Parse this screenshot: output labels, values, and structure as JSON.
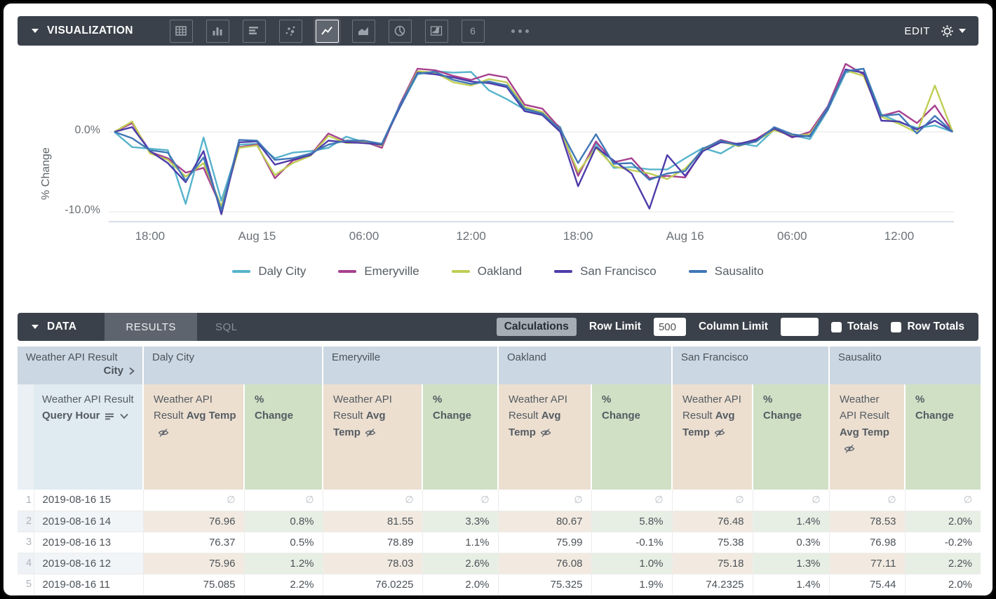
{
  "viz_toolbar": {
    "title": "VISUALIZATION",
    "edit_label": "EDIT",
    "icons": [
      {
        "name": "table-icon",
        "selected": false
      },
      {
        "name": "column-chart-icon",
        "selected": false
      },
      {
        "name": "bar-chart-icon",
        "selected": false
      },
      {
        "name": "scatter-plot-icon",
        "selected": false
      },
      {
        "name": "line-chart-icon",
        "selected": true
      },
      {
        "name": "area-chart-icon",
        "selected": false
      },
      {
        "name": "pie-chart-icon",
        "selected": false
      },
      {
        "name": "map-icon",
        "selected": false
      },
      {
        "name": "single-value-icon",
        "selected": false
      }
    ],
    "single_value_glyph": "6"
  },
  "chart_data": {
    "type": "line",
    "ylabel": "% Change",
    "ylim": [
      -11.5,
      9.5
    ],
    "grid": true,
    "legend_position": "bottom",
    "y_gridlines": [
      {
        "value": 0,
        "label": "0.0%"
      },
      {
        "value": -10,
        "label": "-10.0%"
      }
    ],
    "x_ticks": [
      {
        "index": 2,
        "label": "18:00"
      },
      {
        "index": 8,
        "label": "Aug 15"
      },
      {
        "index": 14,
        "label": "06:00"
      },
      {
        "index": 20,
        "label": "12:00"
      },
      {
        "index": 26,
        "label": "18:00"
      },
      {
        "index": 32,
        "label": "Aug 16"
      },
      {
        "index": 38,
        "label": "06:00"
      },
      {
        "index": 44,
        "label": "12:00"
      }
    ],
    "series": [
      {
        "name": "Daly City",
        "color": "#56b3cc",
        "values": [
          0,
          -1.9,
          -2.1,
          -2.3,
          -9,
          -0.7,
          -8.6,
          -1.6,
          -1.5,
          -3.3,
          -2.6,
          -2.4,
          -2,
          -0.6,
          -1.3,
          -1.6,
          3,
          7.2,
          7.6,
          7.4,
          7.5,
          5.2,
          4.1,
          2.8,
          2.2,
          0.6,
          -5.3,
          -1.5,
          -4.5,
          -4.4,
          -4.7,
          -4.7,
          -3.3,
          -2,
          -2.7,
          -1.4,
          -1.8,
          0.3,
          -0.4,
          -0.9,
          2.7,
          7.4,
          7.9,
          2.2,
          1.2,
          0.5,
          0.8,
          0
        ]
      },
      {
        "name": "Emeryville",
        "color": "#a6408e",
        "values": [
          0,
          1.1,
          -2.5,
          -3.3,
          -5.1,
          -4.5,
          -9.5,
          -1.9,
          -1.6,
          -5.8,
          -3.6,
          -2.9,
          -0.2,
          -1.2,
          -1.2,
          -2,
          3.4,
          7.9,
          7.7,
          7,
          6.5,
          7.2,
          6.8,
          3.4,
          2.9,
          0.4,
          -5.5,
          -1.2,
          -3.8,
          -3.3,
          -5.8,
          -5.5,
          -5.7,
          -2.2,
          -1,
          -1.6,
          -0.9,
          0.5,
          -0.7,
          0,
          3.2,
          8.5,
          7.2,
          2,
          2.6,
          1.1,
          3.3,
          0
        ]
      },
      {
        "name": "Oakland",
        "color": "#c0ce55",
        "values": [
          0,
          1.3,
          -2.7,
          -3.5,
          -5.6,
          -3.9,
          -9.3,
          -2,
          -1.7,
          -5.4,
          -3.9,
          -3,
          -0.5,
          -1.4,
          -1.3,
          -1.7,
          3.2,
          7.6,
          7.4,
          6.2,
          5.8,
          6.6,
          6.2,
          3.1,
          2.5,
          0.2,
          -5,
          -2,
          -4.3,
          -4.8,
          -5.2,
          -5.9,
          -4.6,
          -2.3,
          -1.2,
          -1.8,
          -1.1,
          0.2,
          -0.5,
          -0.3,
          3,
          7.7,
          7,
          1.9,
          1,
          -0.1,
          5.8,
          0
        ]
      },
      {
        "name": "San Francisco",
        "color": "#4d3ca9",
        "values": [
          0,
          0.6,
          -2.4,
          -3.9,
          -6.3,
          -2.4,
          -10.3,
          -1.3,
          -1.2,
          -4.1,
          -3.5,
          -2.9,
          -1.1,
          -1.3,
          -1.4,
          -1.6,
          3.1,
          7.4,
          7.2,
          6.8,
          6.3,
          6.1,
          5.6,
          2.6,
          2.1,
          0,
          -6.8,
          -1.9,
          -3.6,
          -5.2,
          -9.6,
          -2.9,
          -5.5,
          -2.4,
          -1.3,
          -1.5,
          -1,
          0.4,
          -0.6,
          -0.5,
          2.9,
          7.8,
          7.4,
          1.4,
          1.3,
          0.3,
          1.4,
          0
        ]
      },
      {
        "name": "Sausalito",
        "color": "#4077b6",
        "values": [
          0,
          -0.8,
          -2.3,
          -2.6,
          -6.1,
          -3.2,
          -9.8,
          -1,
          -1.1,
          -3.5,
          -3.3,
          -2.7,
          -1.6,
          -1.1,
          -1.1,
          -1.5,
          3.3,
          7.3,
          7.5,
          6.5,
          6,
          6.3,
          5.8,
          2.9,
          2.3,
          0.3,
          -3.9,
          -0.3,
          -4,
          -3.9,
          -6,
          -5.2,
          -4.9,
          -2.1,
          -1.1,
          -1.7,
          -1.2,
          0.6,
          -0.3,
          -0.6,
          3.1,
          7.6,
          7.9,
          2,
          2.2,
          -0.2,
          2,
          0
        ]
      }
    ]
  },
  "data_toolbar": {
    "title": "DATA",
    "tabs": [
      {
        "label": "RESULTS",
        "active": true
      },
      {
        "label": "SQL",
        "active": false
      }
    ],
    "calculations_label": "Calculations",
    "row_limit_label": "Row Limit",
    "row_limit_value": "500",
    "column_limit_label": "Column Limit",
    "column_limit_value": "",
    "totals_label": "Totals",
    "totals_checked": false,
    "row_totals_label": "Row Totals",
    "row_totals_checked": false
  },
  "table": {
    "corner_line1": "Weather API Result",
    "corner_bold": "City",
    "hour_prefix": "Weather API Result",
    "hour_bold": "Query Hour",
    "measure_prefix": "Weather API Result",
    "measure_bold": "Avg Temp",
    "pct_line1": "%",
    "pct_line2": "Change",
    "null_symbol": "∅",
    "cities": [
      "Daly City",
      "Emeryville",
      "Oakland",
      "San Francisco",
      "Sausalito"
    ],
    "rows": [
      {
        "n": 1,
        "hour": "2019-08-16 15",
        "values": [
          null,
          null,
          null,
          null,
          null,
          null,
          null,
          null,
          null,
          null
        ]
      },
      {
        "n": 2,
        "hour": "2019-08-16 14",
        "values": [
          "76.96",
          "0.8%",
          "81.55",
          "3.3%",
          "80.67",
          "5.8%",
          "76.48",
          "1.4%",
          "78.53",
          "2.0%"
        ]
      },
      {
        "n": 3,
        "hour": "2019-08-16 13",
        "values": [
          "76.37",
          "0.5%",
          "78.89",
          "1.1%",
          "75.99",
          "-0.1%",
          "75.38",
          "0.3%",
          "76.98",
          "-0.2%"
        ]
      },
      {
        "n": 4,
        "hour": "2019-08-16 12",
        "values": [
          "75.96",
          "1.2%",
          "78.03",
          "2.6%",
          "76.08",
          "1.0%",
          "75.18",
          "1.3%",
          "77.11",
          "2.2%"
        ]
      },
      {
        "n": 5,
        "hour": "2019-08-16 11",
        "values": [
          "75.085",
          "2.2%",
          "76.0225",
          "2.0%",
          "75.325",
          "1.9%",
          "74.2325",
          "1.4%",
          "75.44",
          "2.0%"
        ]
      }
    ]
  },
  "colors": {
    "toolbar_bg": "#3a414a",
    "active_tab_bg": "#5d646e",
    "group_header_bg": "#cbd7e2",
    "temp_header_bg": "#ecdfd0",
    "pct_header_bg": "#cfe0c5",
    "gridline": "#e4e4e4",
    "axis_line": "#c9d4e2"
  }
}
